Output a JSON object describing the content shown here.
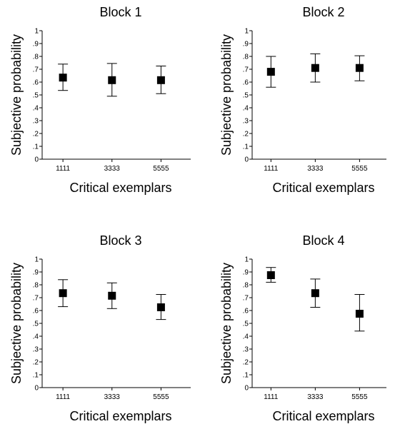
{
  "chart_data": [
    {
      "type": "scatter",
      "title": "Block 1",
      "xlabel": "Critical exemplars",
      "ylabel": "Subjective probability",
      "categories": [
        "1111",
        "3333",
        "5555"
      ],
      "values": [
        0.635,
        0.615,
        0.615
      ],
      "error_low": [
        0.535,
        0.49,
        0.51
      ],
      "error_high": [
        0.74,
        0.745,
        0.725
      ],
      "ylim": [
        0,
        1
      ],
      "yticks": [
        "0",
        ".1",
        ".2",
        ".3",
        ".4",
        ".5",
        ".6",
        ".7",
        ".8",
        ".9",
        "1"
      ],
      "marker": "square",
      "grid": false
    },
    {
      "type": "scatter",
      "title": "Block 2",
      "xlabel": "Critical exemplars",
      "ylabel": "Subjective probability",
      "categories": [
        "1111",
        "3333",
        "5555"
      ],
      "values": [
        0.68,
        0.71,
        0.71
      ],
      "error_low": [
        0.56,
        0.6,
        0.61
      ],
      "error_high": [
        0.8,
        0.82,
        0.805
      ],
      "ylim": [
        0,
        1
      ],
      "yticks": [
        "0",
        ".1",
        ".2",
        ".3",
        ".4",
        ".5",
        ".6",
        ".7",
        ".8",
        ".9",
        "1"
      ],
      "marker": "square",
      "grid": false
    },
    {
      "type": "scatter",
      "title": "Block 3",
      "xlabel": "Critical exemplars",
      "ylabel": "Subjective probability",
      "categories": [
        "1111",
        "3333",
        "5555"
      ],
      "values": [
        0.735,
        0.715,
        0.625
      ],
      "error_low": [
        0.63,
        0.615,
        0.53
      ],
      "error_high": [
        0.84,
        0.815,
        0.725
      ],
      "ylim": [
        0,
        1
      ],
      "yticks": [
        "0",
        ".1",
        ".2",
        ".3",
        ".4",
        ".5",
        ".6",
        ".7",
        ".8",
        ".9",
        "1"
      ],
      "marker": "square",
      "grid": false
    },
    {
      "type": "scatter",
      "title": "Block 4",
      "xlabel": "Critical exemplars",
      "ylabel": "Subjective probability",
      "categories": [
        "1111",
        "3333",
        "5555"
      ],
      "values": [
        0.875,
        0.735,
        0.575
      ],
      "error_low": [
        0.82,
        0.625,
        0.44
      ],
      "error_high": [
        0.935,
        0.845,
        0.725
      ],
      "ylim": [
        0,
        1
      ],
      "yticks": [
        "0",
        ".1",
        ".2",
        ".3",
        ".4",
        ".5",
        ".6",
        ".7",
        ".8",
        ".9",
        "1"
      ],
      "marker": "square",
      "grid": false
    }
  ]
}
